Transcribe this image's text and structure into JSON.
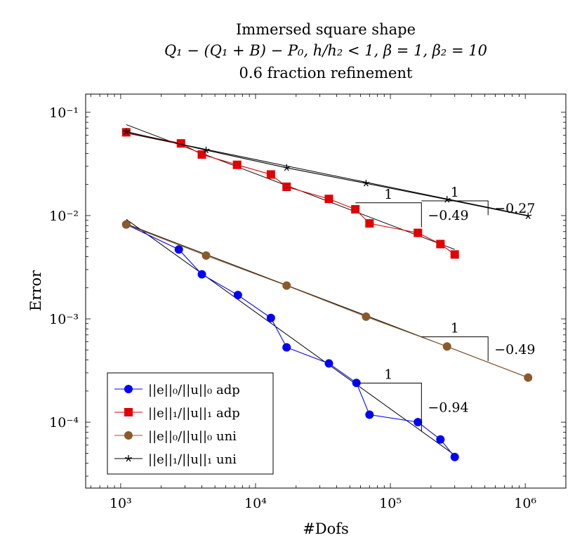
{
  "chart_data": {
    "type": "line",
    "title_lines": [
      "Immersed square shape",
      "Q₁ − (Q₁ + B) − P₀,  h/h₂ < 1,  β = 1, β₂ = 10",
      "0.6 fraction refinement"
    ],
    "xlabel": "#Dofs",
    "ylabel": "Error",
    "x_scale": "log",
    "y_scale": "log",
    "xlim": [
      550,
      2000000
    ],
    "ylim": [
      2.3e-05,
      0.15
    ],
    "x_ticks": [
      {
        "value": 1000,
        "label": "10³"
      },
      {
        "value": 10000,
        "label": "10⁴"
      },
      {
        "value": 100000,
        "label": "10⁵"
      },
      {
        "value": 1000000,
        "label": "10⁶"
      }
    ],
    "y_ticks": [
      {
        "value": 0.1,
        "label": "10⁻¹"
      },
      {
        "value": 0.01,
        "label": "10⁻²"
      },
      {
        "value": 0.001,
        "label": "10⁻³"
      },
      {
        "value": 0.0001,
        "label": "10⁻⁴"
      }
    ],
    "grid": false,
    "legend_position": "bottom-left",
    "series": [
      {
        "name": "||e||₀/||u||₀ adp",
        "color": "#0000ff",
        "marker": "circle",
        "x": [
          1100,
          2700,
          4000,
          7400,
          13000,
          17000,
          35000,
          56000,
          70000,
          160000,
          235000,
          300000
        ],
        "y": [
          0.0082,
          0.0047,
          0.0027,
          0.0017,
          0.00102,
          0.00053,
          0.00037,
          0.00024,
          0.000118,
          0.0001,
          6.8e-05,
          4.6e-05
        ],
        "fit": {
          "x": [
            1100,
            300000
          ],
          "y": [
            0.0092,
            4.8e-05
          ]
        }
      },
      {
        "name": "||e||₁/||u||₁ adp",
        "color": "#e00000",
        "marker": "square",
        "x": [
          1100,
          2800,
          4000,
          7300,
          13000,
          17000,
          35000,
          55000,
          70000,
          160000,
          235000,
          300000
        ],
        "y": [
          0.064,
          0.05,
          0.039,
          0.031,
          0.025,
          0.019,
          0.0145,
          0.0115,
          0.0084,
          0.0068,
          0.0053,
          0.0042
        ],
        "fit": {
          "x": [
            1100,
            300000
          ],
          "y": [
            0.076,
            0.0047
          ]
        }
      },
      {
        "name": "||e||₀/||u||₀ uni",
        "color": "#8b5a2b",
        "marker": "circle",
        "x": [
          1100,
          4300,
          17000,
          66000,
          263000,
          1050000
        ],
        "y": [
          0.0082,
          0.0041,
          0.0021,
          0.00105,
          0.00054,
          0.00027
        ],
        "fit": {
          "x": [
            1100,
            1050000
          ],
          "y": [
            0.0083,
            0.00027
          ]
        }
      },
      {
        "name": "||e||₁/||u||₁ uni",
        "color": "#000000",
        "marker": "star",
        "x": [
          1100,
          4300,
          17000,
          66000,
          263000,
          1050000
        ],
        "y": [
          0.065,
          0.043,
          0.029,
          0.0205,
          0.0143,
          0.0099
        ],
        "fit": {
          "x": [
            1100,
            1050000
          ],
          "y": [
            0.063,
            0.01
          ]
        }
      }
    ],
    "slope_triangles": [
      {
        "x0": 170000,
        "x1": 530000,
        "y_low": 0.0101,
        "y_high": 0.0139,
        "run_label": "1",
        "slope_label": "−0.27"
      },
      {
        "x0": 55000,
        "x1": 170000,
        "y_low": 0.0077,
        "y_high": 0.0133,
        "run_label": "1",
        "slope_label": "−0.49"
      },
      {
        "x0": 170000,
        "x1": 530000,
        "y_low": 0.00039,
        "y_high": 0.00067,
        "run_label": "1",
        "slope_label": "−0.49"
      },
      {
        "x0": 55000,
        "x1": 170000,
        "y_low": 8.2e-05,
        "y_high": 0.000239,
        "run_label": "1",
        "slope_label": "−0.94"
      }
    ]
  }
}
